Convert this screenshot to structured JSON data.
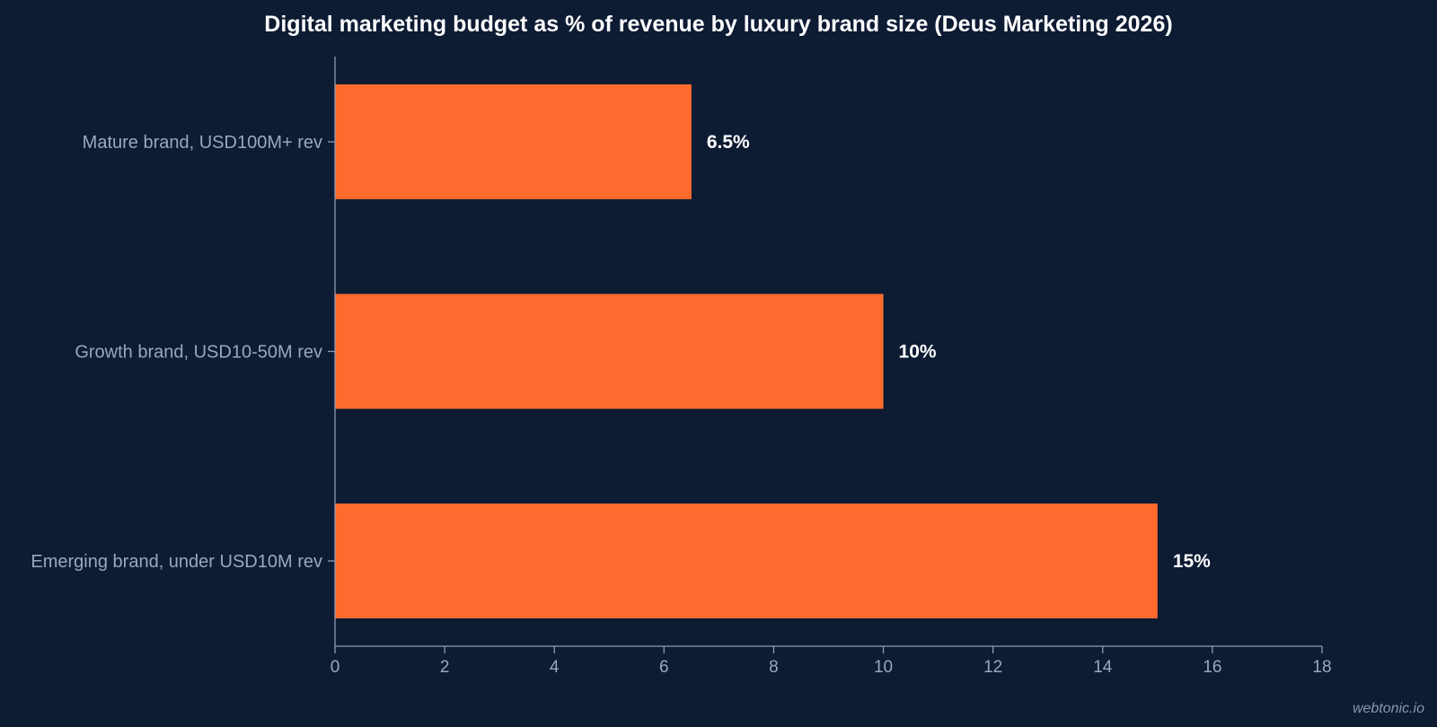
{
  "chart_data": {
    "type": "bar",
    "orientation": "horizontal",
    "title": "Digital marketing budget as % of revenue by luxury brand size (Deus Marketing 2026)",
    "categories": [
      "Mature brand, USD100M+ rev",
      "Growth brand, USD10-50M rev",
      "Emerging brand, under USD10M rev"
    ],
    "values": [
      6.5,
      10,
      15
    ],
    "data_labels": [
      "6.5%",
      "10%",
      "15%"
    ],
    "xlim": [
      0,
      18
    ],
    "x_ticks": [
      0,
      2,
      4,
      6,
      8,
      10,
      12,
      14,
      16,
      18
    ],
    "xlabel": "",
    "ylabel": "",
    "grid": false,
    "legend": "none",
    "bar_color": "#ff6b2e",
    "background_color": "#0d1b33",
    "axis_color": "#8e9bb0"
  },
  "watermark": "webtonic.io"
}
